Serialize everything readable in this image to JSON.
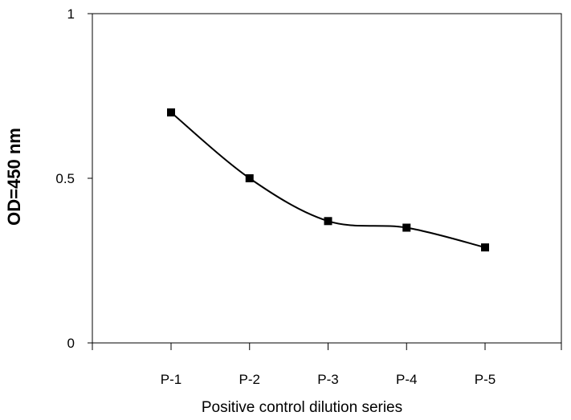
{
  "chart_data": {
    "type": "line",
    "title": "",
    "xlabel": "Positive control dilution series",
    "ylabel": "OD=450 nm",
    "categories": [
      "P-1",
      "P-2",
      "P-3",
      "P-4",
      "P-5"
    ],
    "series": [
      {
        "values": [
          0.7,
          0.5,
          0.37,
          0.35,
          0.29
        ]
      }
    ],
    "ylim": [
      0,
      1
    ],
    "yticks": [
      {
        "value": 0,
        "label": "0"
      },
      {
        "value": 0.5,
        "label": "0.5"
      },
      {
        "value": 1,
        "label": "1"
      }
    ],
    "grid": false,
    "line_style": "smooth",
    "marker": "square",
    "colors": {
      "line": "#000000",
      "marker": "#000000",
      "frame": "#000000"
    }
  }
}
